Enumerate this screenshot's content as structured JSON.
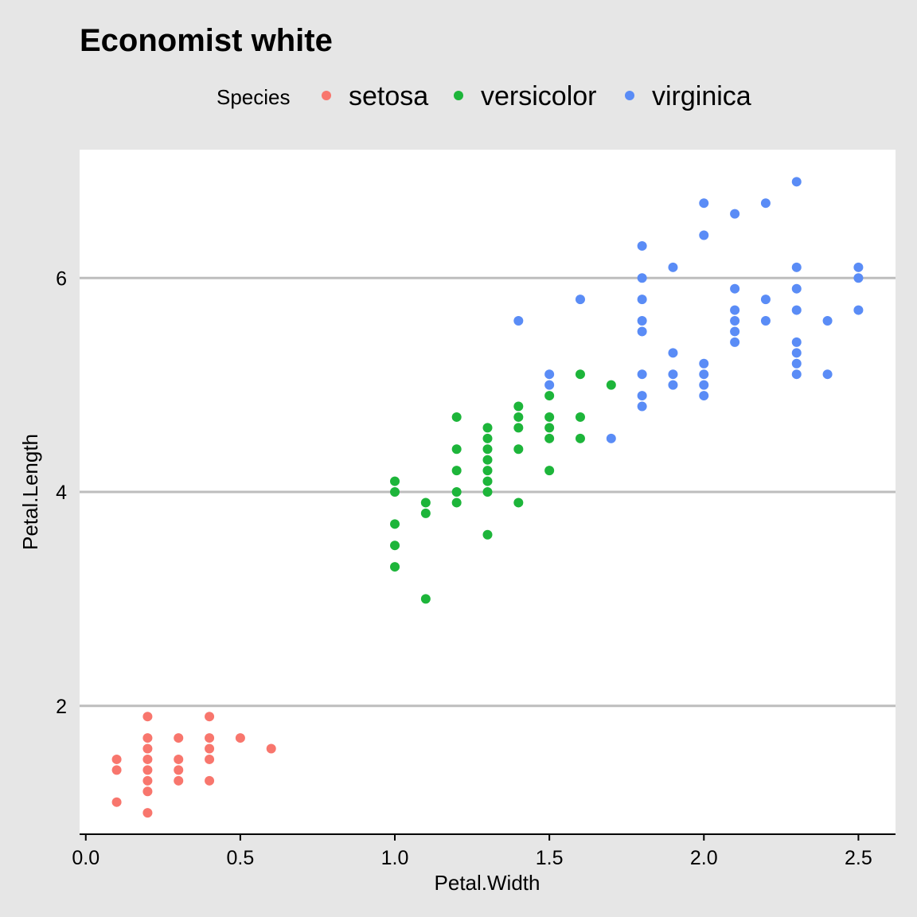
{
  "chart_data": {
    "type": "scatter",
    "title": "Economist white",
    "xlabel": "Petal.Width",
    "ylabel": "Petal.Length",
    "xlim": [
      -0.02,
      2.62
    ],
    "ylim": [
      0.8,
      7.2
    ],
    "x_ticks": [
      0.0,
      0.5,
      1.0,
      1.5,
      2.0,
      2.5
    ],
    "x_tick_labels": [
      "0.0",
      "0.5",
      "1.0",
      "1.5",
      "2.0",
      "2.5"
    ],
    "y_ticks": [
      2,
      4,
      6
    ],
    "y_tick_labels": [
      "2",
      "4",
      "6"
    ],
    "grid": "horizontal",
    "legend": {
      "title": "Species",
      "position": "top"
    },
    "series": [
      {
        "name": "setosa",
        "color": "#f8766d",
        "points": [
          [
            0.1,
            1.1
          ],
          [
            0.1,
            1.4
          ],
          [
            0.1,
            1.5
          ],
          [
            0.2,
            1.0
          ],
          [
            0.2,
            1.2
          ],
          [
            0.2,
            1.3
          ],
          [
            0.2,
            1.4
          ],
          [
            0.2,
            1.5
          ],
          [
            0.2,
            1.6
          ],
          [
            0.2,
            1.7
          ],
          [
            0.2,
            1.9
          ],
          [
            0.3,
            1.3
          ],
          [
            0.3,
            1.4
          ],
          [
            0.3,
            1.5
          ],
          [
            0.3,
            1.7
          ],
          [
            0.4,
            1.3
          ],
          [
            0.4,
            1.5
          ],
          [
            0.4,
            1.6
          ],
          [
            0.4,
            1.7
          ],
          [
            0.4,
            1.9
          ],
          [
            0.5,
            1.7
          ],
          [
            0.6,
            1.6
          ]
        ]
      },
      {
        "name": "versicolor",
        "color": "#1db53a",
        "points": [
          [
            1.0,
            3.3
          ],
          [
            1.0,
            3.5
          ],
          [
            1.0,
            3.7
          ],
          [
            1.0,
            4.0
          ],
          [
            1.0,
            4.1
          ],
          [
            1.1,
            3.0
          ],
          [
            1.1,
            3.8
          ],
          [
            1.1,
            3.9
          ],
          [
            1.2,
            3.9
          ],
          [
            1.2,
            4.0
          ],
          [
            1.2,
            4.2
          ],
          [
            1.2,
            4.4
          ],
          [
            1.2,
            4.7
          ],
          [
            1.3,
            3.6
          ],
          [
            1.3,
            4.0
          ],
          [
            1.3,
            4.1
          ],
          [
            1.3,
            4.2
          ],
          [
            1.3,
            4.3
          ],
          [
            1.3,
            4.4
          ],
          [
            1.3,
            4.5
          ],
          [
            1.3,
            4.6
          ],
          [
            1.4,
            3.9
          ],
          [
            1.4,
            4.4
          ],
          [
            1.4,
            4.6
          ],
          [
            1.4,
            4.7
          ],
          [
            1.4,
            4.8
          ],
          [
            1.5,
            4.2
          ],
          [
            1.5,
            4.5
          ],
          [
            1.5,
            4.6
          ],
          [
            1.5,
            4.7
          ],
          [
            1.5,
            4.9
          ],
          [
            1.6,
            4.5
          ],
          [
            1.6,
            4.7
          ],
          [
            1.6,
            5.1
          ],
          [
            1.7,
            5.0
          ]
        ]
      },
      {
        "name": "virginica",
        "color": "#5a8cf6",
        "points": [
          [
            1.4,
            5.6
          ],
          [
            1.5,
            5.0
          ],
          [
            1.5,
            5.1
          ],
          [
            1.6,
            5.8
          ],
          [
            1.7,
            4.5
          ],
          [
            1.8,
            4.8
          ],
          [
            1.8,
            4.9
          ],
          [
            1.8,
            5.1
          ],
          [
            1.8,
            5.5
          ],
          [
            1.8,
            5.6
          ],
          [
            1.8,
            5.8
          ],
          [
            1.8,
            6.0
          ],
          [
            1.8,
            6.3
          ],
          [
            1.9,
            5.0
          ],
          [
            1.9,
            5.1
          ],
          [
            1.9,
            5.3
          ],
          [
            1.9,
            6.1
          ],
          [
            2.0,
            4.9
          ],
          [
            2.0,
            5.0
          ],
          [
            2.0,
            5.1
          ],
          [
            2.0,
            5.2
          ],
          [
            2.0,
            6.4
          ],
          [
            2.0,
            6.7
          ],
          [
            2.1,
            5.4
          ],
          [
            2.1,
            5.5
          ],
          [
            2.1,
            5.6
          ],
          [
            2.1,
            5.7
          ],
          [
            2.1,
            5.9
          ],
          [
            2.1,
            6.6
          ],
          [
            2.2,
            5.6
          ],
          [
            2.2,
            5.8
          ],
          [
            2.2,
            6.7
          ],
          [
            2.3,
            5.1
          ],
          [
            2.3,
            5.2
          ],
          [
            2.3,
            5.3
          ],
          [
            2.3,
            5.4
          ],
          [
            2.3,
            5.7
          ],
          [
            2.3,
            5.9
          ],
          [
            2.3,
            6.1
          ],
          [
            2.3,
            6.9
          ],
          [
            2.4,
            5.1
          ],
          [
            2.4,
            5.6
          ],
          [
            2.5,
            5.7
          ],
          [
            2.5,
            6.0
          ],
          [
            2.5,
            6.1
          ]
        ]
      }
    ]
  }
}
